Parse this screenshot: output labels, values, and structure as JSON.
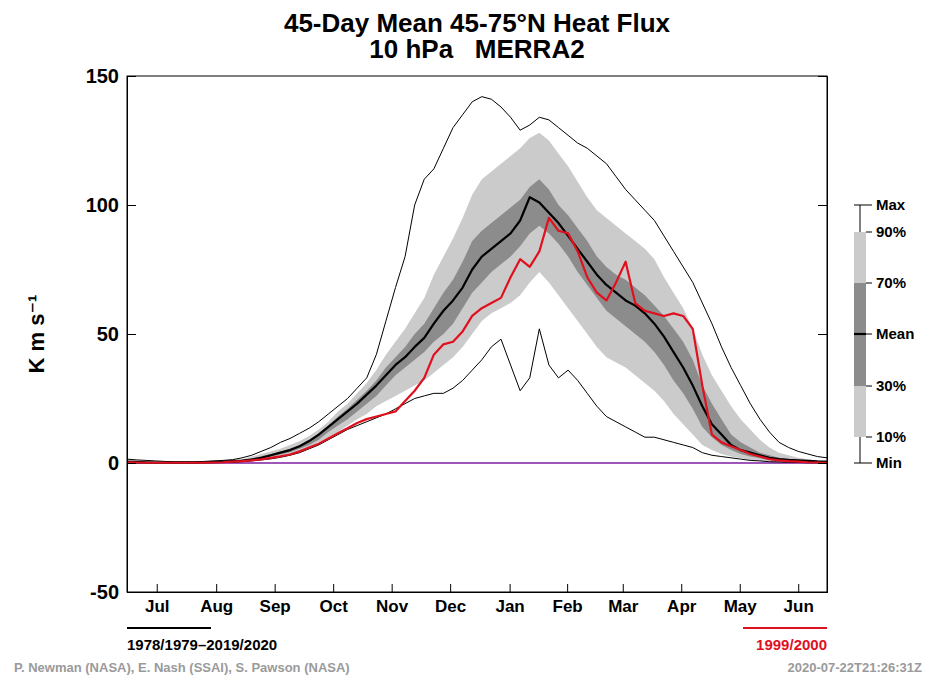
{
  "chart_data": {
    "type": "line",
    "title": "45-Day Mean 45-75°N Heat Flux",
    "subtitle": "10 hPa   MERRA2",
    "y_label": "K m s⁻¹",
    "period_label": "1978/1979–2019/2020",
    "credits": "P. Newman (NASA), E. Nash (SSAI), S. Pawson (NASA)",
    "timestamp": "2020-07-22T21:26:31Z",
    "legend": "right",
    "reference_line": {
      "value": 0,
      "color": "#7b1fa2"
    },
    "xlim": [
      0,
      365
    ],
    "xticks": [
      {
        "value": 15.5,
        "label": "Jul"
      },
      {
        "value": 46.5,
        "label": "Aug"
      },
      {
        "value": 77,
        "label": "Sep"
      },
      {
        "value": 107.5,
        "label": "Oct"
      },
      {
        "value": 138,
        "label": "Nov"
      },
      {
        "value": 168.5,
        "label": "Dec"
      },
      {
        "value": 199.5,
        "label": "Jan"
      },
      {
        "value": 229.5,
        "label": "Feb"
      },
      {
        "value": 258.5,
        "label": "Mar"
      },
      {
        "value": 289,
        "label": "Apr"
      },
      {
        "value": 319.5,
        "label": "May"
      },
      {
        "value": 350,
        "label": "Jun"
      }
    ],
    "ylim": [
      -50,
      150
    ],
    "yticks": [
      -50,
      0,
      50,
      100,
      150
    ],
    "x": [
      0,
      5,
      10,
      15,
      20,
      25,
      30,
      35,
      40,
      45,
      50,
      55,
      60,
      65,
      70,
      75,
      80,
      85,
      90,
      95,
      100,
      105,
      110,
      115,
      120,
      125,
      130,
      135,
      140,
      145,
      150,
      155,
      160,
      165,
      170,
      175,
      180,
      185,
      190,
      195,
      200,
      205,
      210,
      215,
      220,
      225,
      230,
      235,
      240,
      245,
      250,
      255,
      260,
      265,
      270,
      275,
      280,
      285,
      290,
      295,
      300,
      305,
      310,
      315,
      320,
      325,
      330,
      335,
      340,
      345,
      350,
      355,
      360,
      365
    ],
    "series": [
      {
        "name": "Max",
        "type": "line",
        "line_style": "thin",
        "color": "#000000",
        "values": [
          1.5,
          1.2,
          1,
          0.8,
          0.6,
          0.5,
          0.5,
          0.5,
          0.6,
          0.8,
          1,
          1.3,
          2,
          3,
          4.5,
          6,
          8,
          9.5,
          11.5,
          13.5,
          16,
          19,
          22,
          25,
          29,
          33,
          42,
          55,
          68,
          80,
          100,
          110,
          114,
          122,
          130,
          135,
          140,
          142,
          141,
          138,
          134,
          129,
          131,
          134,
          133,
          130,
          127,
          124,
          122,
          119,
          116,
          111,
          106,
          102,
          98,
          94,
          88,
          82,
          76,
          70,
          62,
          54,
          45,
          37,
          30,
          23,
          17,
          12,
          8,
          6,
          4.5,
          3.5,
          2.5,
          2
        ]
      },
      {
        "name": "90%",
        "type": "area",
        "color": "#cbcbcb",
        "values": [
          0.5,
          0.4,
          0.3,
          0.3,
          0.3,
          0.3,
          0.3,
          0.3,
          0.4,
          0.5,
          0.7,
          1,
          1.4,
          2.5,
          3.5,
          4.5,
          5.5,
          7,
          8.5,
          10.5,
          13,
          16,
          20,
          23,
          27,
          31,
          36,
          42,
          47,
          52,
          58,
          64,
          73,
          80,
          87,
          95,
          104,
          110,
          113,
          116,
          119,
          122,
          126,
          128,
          125,
          120,
          115,
          109,
          103,
          98,
          95,
          92,
          89,
          86,
          83,
          79,
          72,
          66,
          60,
          52,
          42,
          34,
          28,
          22,
          17,
          13,
          9,
          6,
          4,
          3,
          2,
          1.5,
          1,
          0.8
        ]
      },
      {
        "name": "70%",
        "type": "area",
        "color": "#8c8c8c",
        "values": [
          0.4,
          0.3,
          0.2,
          0.2,
          0.2,
          0.2,
          0.2,
          0.2,
          0.3,
          0.4,
          0.5,
          0.8,
          1.1,
          1.8,
          2.6,
          3.5,
          4.5,
          5.5,
          7,
          9,
          11.5,
          14.5,
          18,
          21,
          24.5,
          28,
          32,
          37,
          41,
          45,
          50,
          54,
          60,
          66,
          71,
          78,
          86,
          90,
          93,
          96,
          99,
          102,
          107,
          110,
          106,
          100,
          96,
          91,
          86,
          80,
          76,
          73,
          71,
          68,
          65,
          61,
          57,
          52,
          47,
          40,
          30,
          23,
          17,
          11,
          8,
          6,
          4,
          3,
          2,
          1.5,
          1.2,
          1,
          0.7,
          0.5
        ]
      },
      {
        "name": "Mean",
        "type": "line",
        "line_style": "thick",
        "color": "#000000",
        "values": [
          0.5,
          0.4,
          0.3,
          0.2,
          0.2,
          0.2,
          0.2,
          0.2,
          0.3,
          0.4,
          0.5,
          0.7,
          0.9,
          1.3,
          2,
          3,
          4,
          5,
          6.5,
          8.5,
          11,
          14,
          17,
          20,
          23,
          26.5,
          30,
          34,
          38,
          41,
          45,
          48.5,
          54,
          59,
          63,
          68,
          75,
          80,
          83,
          86,
          89,
          94,
          103,
          101,
          97,
          93,
          88,
          83,
          78,
          73,
          69,
          66,
          63,
          61,
          58,
          54,
          49,
          43,
          37,
          30,
          22,
          15,
          11,
          7,
          5,
          4,
          3,
          2,
          1.5,
          1.2,
          1,
          0.8,
          0.6,
          0.5
        ]
      },
      {
        "name": "30%",
        "type": "area",
        "color": "#8c8c8c",
        "values": [
          0.3,
          0.2,
          0.1,
          0.1,
          0.1,
          0.1,
          0.1,
          0.1,
          0.2,
          0.3,
          0.4,
          0.6,
          0.8,
          1.2,
          1.8,
          2.5,
          3.3,
          4.2,
          5.5,
          7,
          9,
          12,
          14.5,
          17,
          20,
          23,
          26,
          30,
          34,
          37,
          40,
          43,
          47,
          50,
          54,
          60,
          66,
          70,
          74,
          77,
          80,
          84,
          89,
          92,
          89,
          85,
          80,
          74,
          69,
          64,
          59,
          56,
          53,
          50,
          47,
          43,
          38,
          32,
          27,
          21,
          14,
          10,
          7,
          5,
          3.5,
          2.5,
          1.8,
          1.2,
          0.9,
          0.7,
          0.5,
          0.4,
          0.3,
          0.2
        ]
      },
      {
        "name": "10%",
        "type": "area",
        "color": "#cbcbcb",
        "values": [
          0.2,
          0.1,
          0.1,
          0.1,
          0.1,
          0.1,
          0.1,
          0.1,
          0.1,
          0.2,
          0.3,
          0.4,
          0.6,
          0.9,
          1.3,
          1.8,
          2.5,
          3.3,
          4.5,
          6,
          8,
          10,
          12,
          14.5,
          17,
          19,
          22,
          24,
          26,
          28,
          30,
          32,
          35,
          38,
          41,
          45,
          50,
          55,
          58,
          60,
          62,
          65,
          70,
          74,
          70,
          65,
          60,
          55,
          50,
          45,
          41,
          39,
          37,
          34,
          31,
          28,
          24,
          19,
          15,
          11,
          7,
          5,
          3.5,
          2.5,
          1.8,
          1.2,
          0.8,
          0.5,
          0.4,
          0.3,
          0.2,
          0.2,
          0.1,
          0.1
        ]
      },
      {
        "name": "Min",
        "type": "line",
        "line_style": "thin",
        "color": "#000000",
        "values": [
          0,
          0,
          0,
          0,
          0,
          0,
          0,
          0,
          0.1,
          0.1,
          0.2,
          0.3,
          0.5,
          0.8,
          1.2,
          1.6,
          2.2,
          3,
          4,
          5.5,
          7,
          9,
          11,
          13,
          14.5,
          16,
          17.5,
          19,
          21,
          23,
          25,
          26,
          27,
          27,
          29,
          32,
          36,
          40,
          45,
          48,
          38,
          28,
          33,
          52,
          38,
          33,
          36,
          32,
          27,
          22,
          18,
          16,
          14,
          12,
          10,
          10,
          9,
          8,
          7,
          6,
          4,
          3,
          2.5,
          2,
          1.5,
          1,
          0.8,
          0.5,
          0.4,
          0.3,
          0.2,
          0.1,
          0.1,
          0.1
        ]
      },
      {
        "name": "1999/2000",
        "type": "line",
        "line_style": "thick",
        "color": "#e0101e",
        "values": [
          0.3,
          0.2,
          0.1,
          0.1,
          0.1,
          0.1,
          0.1,
          0.1,
          0.1,
          0.2,
          0.3,
          0.5,
          0.7,
          1,
          1.4,
          2,
          2.6,
          3.3,
          4.5,
          6,
          7.5,
          9.5,
          11.5,
          13.5,
          15.5,
          17,
          18,
          19,
          20,
          24,
          28,
          33,
          42,
          46,
          47,
          51,
          57,
          60,
          62,
          64,
          72,
          79,
          76,
          82,
          95,
          90,
          89,
          82,
          72,
          66,
          63,
          70,
          78,
          62,
          59,
          58,
          57,
          58,
          57,
          52,
          30,
          11,
          8,
          6.5,
          5,
          3.5,
          2.5,
          1.5,
          1,
          0.7,
          0.5,
          0.3,
          0.2,
          0.1
        ]
      }
    ]
  }
}
